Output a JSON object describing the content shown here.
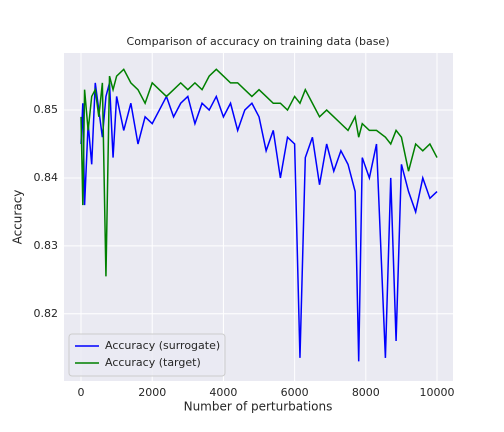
{
  "chart_data": {
    "type": "line",
    "title": "Comparison of accuracy on training data (base)",
    "xlabel": "Number of perturbations",
    "ylabel": "Accuracy",
    "x": [
      0,
      50,
      100,
      200,
      300,
      400,
      500,
      600,
      700,
      800,
      900,
      1000,
      1200,
      1400,
      1600,
      1800,
      2000,
      2200,
      2400,
      2600,
      2800,
      3000,
      3200,
      3400,
      3600,
      3800,
      4000,
      4200,
      4400,
      4600,
      4800,
      5000,
      5200,
      5400,
      5600,
      5800,
      6000,
      6150,
      6300,
      6500,
      6700,
      6900,
      7100,
      7300,
      7500,
      7700,
      7800,
      7900,
      8100,
      8300,
      8550,
      8700,
      8850,
      9000,
      9200,
      9400,
      9600,
      9800,
      10000
    ],
    "series": [
      {
        "name": "Accuracy (surrogate)",
        "color": "#0000ff",
        "values": [
          0.845,
          0.851,
          0.836,
          0.848,
          0.842,
          0.854,
          0.85,
          0.846,
          0.852,
          0.854,
          0.843,
          0.852,
          0.847,
          0.851,
          0.845,
          0.849,
          0.848,
          0.85,
          0.852,
          0.849,
          0.851,
          0.852,
          0.848,
          0.851,
          0.85,
          0.852,
          0.849,
          0.851,
          0.847,
          0.85,
          0.851,
          0.849,
          0.844,
          0.847,
          0.84,
          0.846,
          0.845,
          0.8135,
          0.843,
          0.846,
          0.839,
          0.845,
          0.841,
          0.844,
          0.842,
          0.838,
          0.813,
          0.843,
          0.84,
          0.845,
          0.8135,
          0.84,
          0.816,
          0.842,
          0.838,
          0.835,
          0.84,
          0.837,
          0.838
        ]
      },
      {
        "name": "Accuracy (target)",
        "color": "#008000",
        "values": [
          0.849,
          0.836,
          0.853,
          0.847,
          0.852,
          0.853,
          0.849,
          0.854,
          0.8255,
          0.855,
          0.853,
          0.855,
          0.856,
          0.854,
          0.853,
          0.851,
          0.854,
          0.853,
          0.852,
          0.853,
          0.854,
          0.853,
          0.854,
          0.853,
          0.855,
          0.856,
          0.855,
          0.854,
          0.854,
          0.853,
          0.852,
          0.853,
          0.852,
          0.851,
          0.851,
          0.85,
          0.852,
          0.851,
          0.853,
          0.851,
          0.849,
          0.85,
          0.849,
          0.848,
          0.847,
          0.849,
          0.846,
          0.848,
          0.847,
          0.847,
          0.846,
          0.845,
          0.847,
          0.846,
          0.841,
          0.845,
          0.844,
          0.845,
          0.843
        ]
      }
    ],
    "xlim": [
      -478,
      10449
    ],
    "ylim": [
      0.8101,
      0.8584
    ],
    "xticks": [
      0,
      2000,
      4000,
      6000,
      8000,
      10000
    ],
    "yticks": [
      0.82,
      0.83,
      0.84,
      0.85
    ],
    "grid": true,
    "legend": "lower left"
  }
}
